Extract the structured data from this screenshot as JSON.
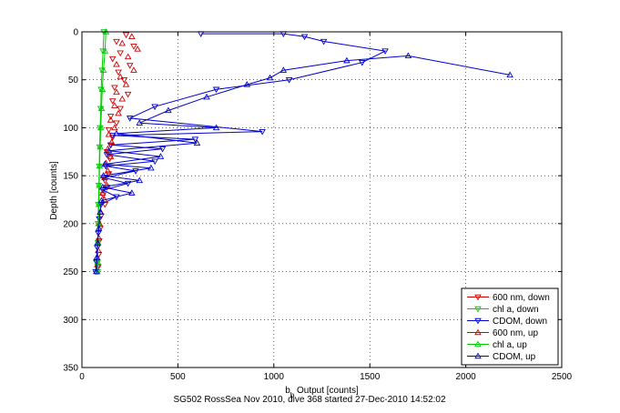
{
  "chart_data": {
    "type": "scatter",
    "xlabel": "b_b Output [counts]",
    "ylabel": "Depth [counts]",
    "caption": "SG502 RossSea Nov 2010, dive 368 started 27-Dec-2010 14:52:02",
    "xlim": [
      0,
      2500
    ],
    "ylim": [
      0,
      350
    ],
    "y_reversed": true,
    "grid": true,
    "grid_style": "dotted",
    "legend_position": "bottom-right",
    "x_ticks": [
      0,
      500,
      1000,
      1500,
      2000,
      2500
    ],
    "y_ticks": [
      0,
      50,
      100,
      150,
      200,
      250,
      300,
      350
    ],
    "series": [
      {
        "name": "600 nm, down",
        "color": "#cc0000",
        "marker": "triangle-down",
        "line": false,
        "points": [
          [
            230,
            3
          ],
          [
            180,
            10
          ],
          [
            270,
            15
          ],
          [
            200,
            22
          ],
          [
            160,
            28
          ],
          [
            250,
            35
          ],
          [
            190,
            42
          ],
          [
            220,
            50
          ],
          [
            170,
            58
          ],
          [
            240,
            65
          ],
          [
            160,
            72
          ],
          [
            200,
            80
          ],
          [
            150,
            88
          ],
          [
            180,
            95
          ],
          [
            140,
            102
          ],
          [
            160,
            110
          ],
          [
            150,
            118
          ],
          [
            130,
            125
          ],
          [
            145,
            132
          ],
          [
            125,
            140
          ],
          [
            140,
            148
          ],
          [
            120,
            155
          ],
          [
            130,
            162
          ],
          [
            110,
            170
          ],
          [
            120,
            180
          ],
          [
            100,
            192
          ],
          [
            95,
            205
          ],
          [
            90,
            218
          ],
          [
            88,
            232
          ],
          [
            85,
            245
          ]
        ]
      },
      {
        "name": "chl a, down",
        "color": "#00cc00",
        "marker": "triangle-down",
        "line": true,
        "points": [
          [
            115,
            0
          ],
          [
            110,
            20
          ],
          [
            105,
            40
          ],
          [
            100,
            60
          ],
          [
            98,
            80
          ],
          [
            95,
            100
          ],
          [
            92,
            120
          ],
          [
            90,
            140
          ],
          [
            88,
            160
          ],
          [
            86,
            180
          ],
          [
            84,
            200
          ],
          [
            83,
            220
          ],
          [
            82,
            240
          ],
          [
            82,
            250
          ]
        ]
      },
      {
        "name": "CDOM, down",
        "color": "#0000cc",
        "marker": "triangle-down",
        "line": true,
        "points": [
          [
            620,
            2
          ],
          [
            1050,
            2
          ],
          [
            1160,
            5
          ],
          [
            1260,
            10
          ],
          [
            1580,
            20
          ],
          [
            1460,
            32
          ],
          [
            1080,
            50
          ],
          [
            700,
            60
          ],
          [
            380,
            78
          ],
          [
            250,
            90
          ],
          [
            940,
            104
          ],
          [
            160,
            108
          ],
          [
            590,
            112
          ],
          [
            150,
            118
          ],
          [
            420,
            122
          ],
          [
            130,
            128
          ],
          [
            380,
            135
          ],
          [
            125,
            140
          ],
          [
            280,
            145
          ],
          [
            115,
            152
          ],
          [
            240,
            158
          ],
          [
            110,
            165
          ],
          [
            180,
            172
          ],
          [
            100,
            180
          ],
          [
            90,
            195
          ],
          [
            85,
            210
          ],
          [
            80,
            225
          ],
          [
            75,
            240
          ],
          [
            72,
            250
          ]
        ]
      },
      {
        "name": "600 nm, up",
        "color": "#cc0000",
        "marker": "triangle-up",
        "line": false,
        "points": [
          [
            260,
            5
          ],
          [
            210,
            12
          ],
          [
            290,
            18
          ],
          [
            240,
            26
          ],
          [
            180,
            34
          ],
          [
            270,
            40
          ],
          [
            200,
            47
          ],
          [
            230,
            55
          ],
          [
            180,
            63
          ],
          [
            210,
            70
          ],
          [
            170,
            77
          ],
          [
            190,
            85
          ],
          [
            150,
            92
          ],
          [
            170,
            100
          ],
          [
            140,
            107
          ],
          [
            155,
            115
          ],
          [
            135,
            122
          ],
          [
            150,
            130
          ],
          [
            125,
            137
          ],
          [
            135,
            145
          ],
          [
            118,
            152
          ],
          [
            130,
            160
          ],
          [
            108,
            168
          ],
          [
            118,
            175
          ],
          [
            98,
            188
          ],
          [
            92,
            200
          ],
          [
            88,
            215
          ],
          [
            85,
            228
          ],
          [
            80,
            243
          ]
        ]
      },
      {
        "name": "chl a, up",
        "color": "#00cc00",
        "marker": "triangle-up",
        "line": true,
        "points": [
          [
            125,
            0
          ],
          [
            120,
            20
          ],
          [
            112,
            40
          ],
          [
            106,
            60
          ],
          [
            102,
            80
          ],
          [
            98,
            100
          ],
          [
            95,
            120
          ],
          [
            92,
            140
          ],
          [
            90,
            160
          ],
          [
            88,
            180
          ],
          [
            86,
            200
          ],
          [
            84,
            220
          ],
          [
            82,
            240
          ],
          [
            80,
            250
          ]
        ]
      },
      {
        "name": "CDOM, up",
        "color": "#0000cc",
        "marker": "triangle-up",
        "line": true,
        "points": [
          [
            2230,
            45
          ],
          [
            1700,
            25
          ],
          [
            1380,
            30
          ],
          [
            1050,
            40
          ],
          [
            980,
            48
          ],
          [
            860,
            55
          ],
          [
            650,
            68
          ],
          [
            450,
            82
          ],
          [
            300,
            95
          ],
          [
            700,
            100
          ],
          [
            180,
            106
          ],
          [
            600,
            116
          ],
          [
            140,
            124
          ],
          [
            410,
            130
          ],
          [
            120,
            138
          ],
          [
            360,
            142
          ],
          [
            112,
            150
          ],
          [
            300,
            155
          ],
          [
            108,
            162
          ],
          [
            260,
            168
          ],
          [
            102,
            176
          ],
          [
            95,
            188
          ],
          [
            88,
            205
          ],
          [
            82,
            220
          ],
          [
            78,
            235
          ],
          [
            75,
            250
          ]
        ]
      }
    ]
  }
}
